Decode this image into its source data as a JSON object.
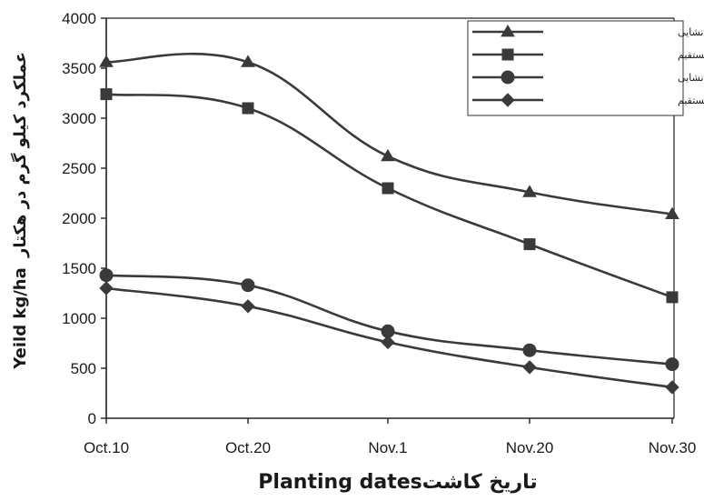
{
  "chart_data": {
    "type": "line",
    "categories": [
      "Oct.10",
      "Oct.20",
      "Nov.1",
      "Nov.20",
      "Nov.30"
    ],
    "series": [
      {
        "name": "عملکرد دانه کشت نشایی",
        "marker": "triangle",
        "values": [
          3560,
          3560,
          2620,
          2260,
          2040
        ]
      },
      {
        "name": "عملکرد دانه کشت مستقیم",
        "marker": "square",
        "values": [
          3240,
          3100,
          2300,
          1740,
          1210
        ]
      },
      {
        "name": "عملکرد روغن کشت نشایی",
        "marker": "circle",
        "values": [
          1430,
          1330,
          870,
          680,
          540
        ]
      },
      {
        "name": "عملکرد روغن کشت مستقیم",
        "marker": "diamond",
        "values": [
          1300,
          1120,
          760,
          510,
          310
        ]
      }
    ],
    "ylim": [
      0,
      4000
    ],
    "yticks": [
      0,
      500,
      1000,
      1500,
      2000,
      2500,
      3000,
      3500,
      4000
    ],
    "xlabel": "Planting datesتاریخ کاشت",
    "ylabel_fa": "عملکرد کیلو گرم در هکتار",
    "ylabel_en": "Yeild   kg/ha",
    "legend_position": "top-right",
    "grid": false,
    "line_color": "#3a3a3a"
  }
}
